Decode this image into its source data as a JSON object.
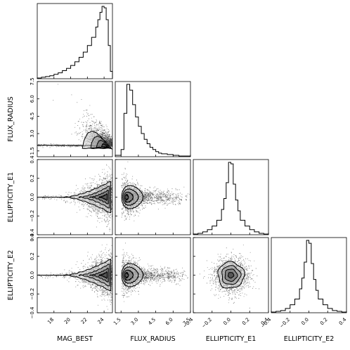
{
  "chart_data": {
    "type": "corner",
    "variables": [
      "MAG_BEST",
      "FLUX_RADIUS",
      "ELLIPTICITY_E1",
      "ELLIPTICITY_E2"
    ],
    "axis_labels": {
      "x": [
        "MAG_BEST",
        "FLUX_RADIUS",
        "ELLIPTICITY_E1",
        "ELLIPTICITY_E2"
      ],
      "y": [
        "",
        "FLUX_RADIUS",
        "ELLIPTICITY_E1",
        "ELLIPTICITY_E2"
      ]
    },
    "ranges": {
      "MAG_BEST": [
        16,
        25
      ],
      "FLUX_RADIUS": [
        1,
        7.5
      ],
      "ELLIPTICITY_E1": [
        -0.4,
        0.4
      ],
      "ELLIPTICITY_E2": [
        -0.4,
        0.4
      ]
    },
    "ticks": {
      "MAG_BEST": [
        {
          "v": 18,
          "t": "18"
        },
        {
          "v": 20,
          "t": "20"
        },
        {
          "v": 22,
          "t": "22"
        },
        {
          "v": 24,
          "t": "24"
        }
      ],
      "FLUX_RADIUS": [
        {
          "v": 1.5,
          "t": "1.5"
        },
        {
          "v": 3.0,
          "t": "3.0"
        },
        {
          "v": 4.5,
          "t": "4.5"
        },
        {
          "v": 6.0,
          "t": "6.0"
        },
        {
          "v": 7.5,
          "t": "7.5"
        }
      ],
      "ELLIPTICITY_E1": [
        {
          "v": -0.4,
          "t": "−0.4"
        },
        {
          "v": -0.2,
          "t": "−0.2"
        },
        {
          "v": 0.0,
          "t": "0.0"
        },
        {
          "v": 0.2,
          "t": "0.2"
        },
        {
          "v": 0.4,
          "t": "0.4"
        }
      ],
      "ELLIPTICITY_E2": [
        {
          "v": -0.4,
          "t": "−0.4"
        },
        {
          "v": -0.2,
          "t": "−0.2"
        },
        {
          "v": 0.0,
          "t": "0.0"
        },
        {
          "v": 0.2,
          "t": "0.2"
        },
        {
          "v": 0.4,
          "t": "0.4"
        }
      ]
    },
    "histograms": [
      {
        "variable": "MAG_BEST",
        "bin_edges": [
          16.0,
          16.5,
          17.0,
          17.5,
          18.0,
          18.5,
          19.0,
          19.5,
          20.0,
          20.5,
          21.0,
          21.5,
          22.0,
          22.5,
          23.0,
          23.25,
          23.5,
          23.75,
          24.0,
          24.25,
          24.5,
          24.75,
          25.0
        ],
        "counts": [
          1,
          2,
          3,
          4,
          6,
          8,
          11,
          14,
          18,
          23,
          29,
          36,
          45,
          56,
          70,
          80,
          90,
          98,
          96,
          80,
          45,
          10
        ]
      },
      {
        "variable": "FLUX_RADIUS",
        "bin_edges": [
          1.0,
          1.5,
          1.75,
          2.0,
          2.25,
          2.5,
          2.75,
          3.0,
          3.25,
          3.5,
          3.75,
          4.0,
          4.25,
          4.5,
          4.75,
          5.0,
          5.5,
          6.0,
          6.5,
          7.0,
          7.5
        ],
        "counts": [
          2,
          10,
          60,
          100,
          92,
          72,
          55,
          42,
          32,
          24,
          18,
          13,
          10,
          7,
          5,
          4,
          3,
          2,
          1,
          1
        ]
      },
      {
        "variable": "ELLIPTICITY_E1",
        "bin_edges": [
          -0.4,
          -0.35,
          -0.3,
          -0.25,
          -0.2,
          -0.15,
          -0.1,
          -0.075,
          -0.05,
          -0.025,
          0.0,
          0.025,
          0.05,
          0.075,
          0.1,
          0.15,
          0.2,
          0.25,
          0.3,
          0.35,
          0.4
        ],
        "counts": [
          1,
          2,
          4,
          7,
          12,
          20,
          35,
          50,
          72,
          100,
          98,
          70,
          48,
          33,
          20,
          12,
          7,
          4,
          2,
          1
        ]
      },
      {
        "variable": "ELLIPTICITY_E2",
        "bin_edges": [
          -0.4,
          -0.35,
          -0.3,
          -0.25,
          -0.2,
          -0.15,
          -0.1,
          -0.075,
          -0.05,
          -0.025,
          0.0,
          0.025,
          0.05,
          0.075,
          0.1,
          0.15,
          0.2,
          0.25,
          0.3,
          0.35,
          0.4
        ],
        "counts": [
          1,
          2,
          3,
          6,
          11,
          19,
          33,
          48,
          70,
          100,
          96,
          68,
          46,
          31,
          19,
          11,
          6,
          3,
          2,
          1
        ]
      }
    ],
    "density_panels": [
      {
        "x": "MAG_BEST",
        "y": "FLUX_RADIUS",
        "shape": "locus",
        "peak": [
          24.0,
          1.9
        ],
        "stellar_locus_y": 2.0,
        "contour_levels": [
          0.5,
          1.0,
          1.5,
          2.0
        ]
      },
      {
        "x": "MAG_BEST",
        "y": "ELLIPTICITY_E1",
        "shape": "funnel",
        "peak": [
          24.0,
          0.0
        ],
        "contour_levels": [
          0.5,
          1.0,
          1.5,
          2.0
        ]
      },
      {
        "x": "FLUX_RADIUS",
        "y": "ELLIPTICITY_E1",
        "shape": "fan",
        "peak": [
          2.0,
          0.0
        ],
        "contour_levels": [
          0.5,
          1.0,
          1.5,
          2.0
        ]
      },
      {
        "x": "MAG_BEST",
        "y": "ELLIPTICITY_E2",
        "shape": "funnel",
        "peak": [
          24.0,
          0.0
        ],
        "contour_levels": [
          0.5,
          1.0,
          1.5,
          2.0
        ]
      },
      {
        "x": "FLUX_RADIUS",
        "y": "ELLIPTICITY_E2",
        "shape": "fan",
        "peak": [
          2.0,
          0.0
        ],
        "contour_levels": [
          0.5,
          1.0,
          1.5,
          2.0
        ]
      },
      {
        "x": "ELLIPTICITY_E1",
        "y": "ELLIPTICITY_E2",
        "shape": "blob",
        "peak": [
          0.0,
          0.0
        ],
        "contour_levels": [
          0.5,
          1.0,
          1.5,
          2.0
        ]
      }
    ],
    "grid": false,
    "legend": "none"
  }
}
